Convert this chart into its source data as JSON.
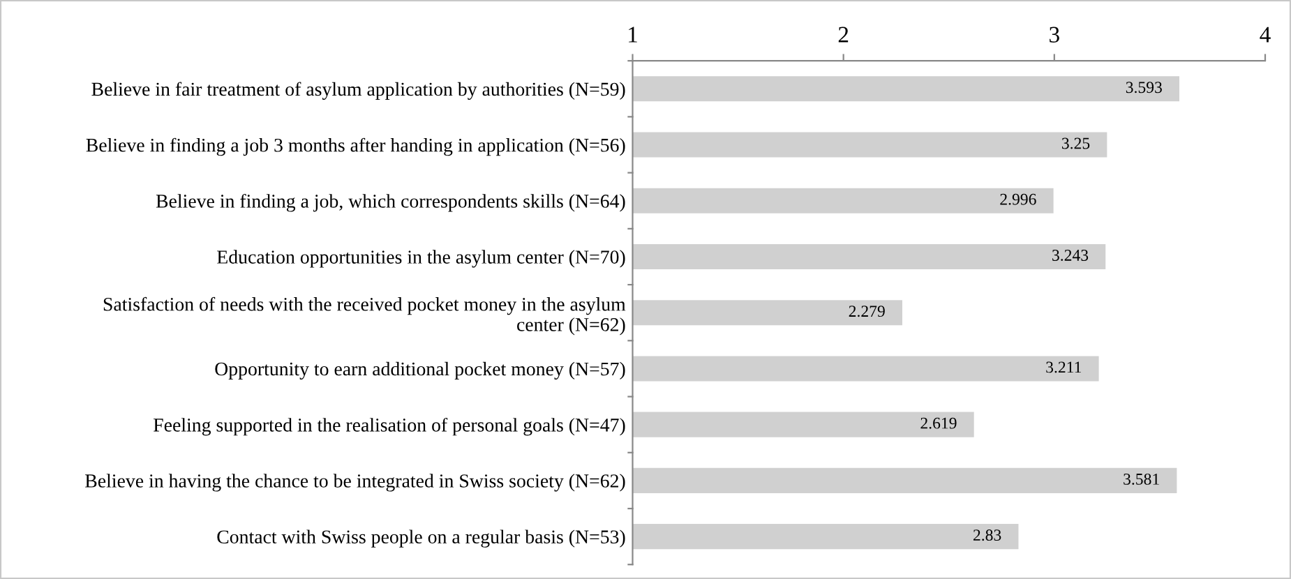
{
  "chart_data": {
    "type": "bar",
    "orientation": "horizontal",
    "categories": [
      "Believe in fair treatment of asylum application by authorities (N=59)",
      "Believe in finding a job 3 months after handing in application (N=56)",
      "Believe in finding a job, which correspondents skills (N=64)",
      "Education opportunities in the asylum center (N=70)",
      "Satisfaction of needs with the received pocket money in the asylum\ncenter (N=62)",
      "Opportunity to earn additional pocket money (N=57)",
      "Feeling supported in the realisation of personal goals (N=47)",
      "Believe in having the chance to be integrated in Swiss society (N=62)",
      "Contact with Swiss people on a regular basis (N=53)"
    ],
    "values": [
      3.593,
      3.25,
      2.996,
      3.243,
      2.279,
      3.211,
      2.619,
      3.581,
      2.83
    ],
    "color": "#d0d0d0",
    "xlim": [
      1,
      4
    ],
    "xticks": [
      1,
      2,
      3,
      4
    ],
    "data_labels": true,
    "grid": false,
    "legend": false
  }
}
